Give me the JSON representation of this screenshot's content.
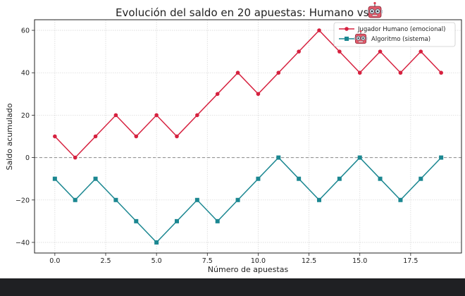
{
  "chart_data": {
    "type": "line",
    "title": "Evolución del saldo en 20 apuestas: Humano vs",
    "title_emoji": "robot-face-icon",
    "xlabel": "Número de apuestas",
    "ylabel": "Saldo acumulado",
    "xlim": [
      -1,
      20
    ],
    "ylim": [
      -45,
      65
    ],
    "xticks": [
      0.0,
      2.5,
      5.0,
      7.5,
      10.0,
      12.5,
      15.0,
      17.5
    ],
    "xtick_labels": [
      "0.0",
      "2.5",
      "5.0",
      "7.5",
      "10.0",
      "12.5",
      "15.0",
      "17.5"
    ],
    "yticks": [
      -40,
      -20,
      0,
      20,
      40,
      60
    ],
    "ytick_labels": [
      "−40",
      "−20",
      "0",
      "20",
      "40",
      "60"
    ],
    "grid": true,
    "reference_line": {
      "y": 0,
      "style": "dashed",
      "color": "#888888"
    },
    "legend_position": "top-right",
    "x": [
      0,
      1,
      2,
      3,
      4,
      5,
      6,
      7,
      8,
      9,
      10,
      11,
      12,
      13,
      14,
      15,
      16,
      17,
      18,
      19
    ],
    "series": [
      {
        "name": "Jugador Humano (emocional)",
        "marker": "circle",
        "color": "#d6213f",
        "values": [
          10,
          0,
          10,
          20,
          10,
          20,
          10,
          20,
          30,
          40,
          30,
          40,
          50,
          60,
          50,
          40,
          50,
          40,
          50,
          40
        ]
      },
      {
        "name": "Algoritmo (sistema)",
        "legend_emoji": "robot-face-icon",
        "marker": "square",
        "color": "#1b8791",
        "values": [
          -10,
          -20,
          -10,
          -20,
          -30,
          -40,
          -30,
          -20,
          -30,
          -20,
          -10,
          0,
          -10,
          -20,
          -10,
          0,
          -10,
          -20,
          -10,
          0
        ]
      }
    ]
  }
}
